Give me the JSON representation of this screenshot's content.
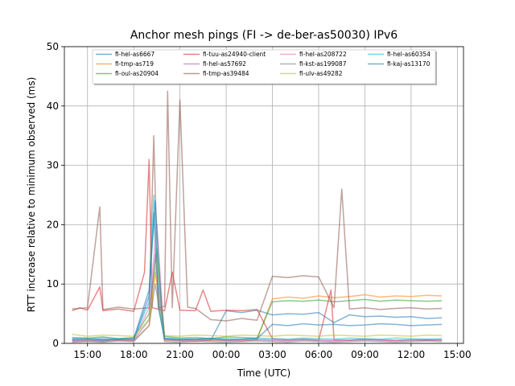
{
  "chart_data": {
    "type": "line",
    "title": "Anchor mesh pings (FI -> de-ber-as50030) IPv6",
    "xlabel": "Time (UTC)",
    "ylabel": "RTT increase relative to minimum observed (ms)",
    "xlim": [
      13.5,
      15.1
    ],
    "ylim": [
      0,
      50
    ],
    "grid": true,
    "legend_position": "top-center",
    "x_ticks": [
      {
        "value": 15,
        "label": "15:00"
      },
      {
        "value": 18,
        "label": "18:00"
      },
      {
        "value": 21,
        "label": "21:00"
      },
      {
        "value": 24,
        "label": "00:00"
      },
      {
        "value": 27,
        "label": "03:00"
      },
      {
        "value": 30,
        "label": "06:00"
      },
      {
        "value": 33,
        "label": "09:00"
      },
      {
        "value": 36,
        "label": "12:00"
      },
      {
        "value": 39,
        "label": "15:00"
      }
    ],
    "y_ticks": [
      0,
      10,
      20,
      30,
      40,
      50
    ],
    "series": [
      {
        "name": "fi-hel-as6667",
        "color": "#1f77b4",
        "x": [
          14,
          15,
          16,
          17,
          18,
          19,
          19.3,
          19.6,
          20,
          21,
          22,
          23,
          24,
          25,
          26,
          27,
          28,
          29,
          30,
          31,
          32,
          33,
          34,
          35,
          36,
          37,
          38
        ],
        "y": [
          0.5,
          0.6,
          0.5,
          0.7,
          0.6,
          8,
          22,
          6,
          0.8,
          0.6,
          0.7,
          0.5,
          5.5,
          5.2,
          5.6,
          4.8,
          5.0,
          4.9,
          5.2,
          3.5,
          4.8,
          4.5,
          4.6,
          4.4,
          4.5,
          4.2,
          4.3
        ]
      },
      {
        "name": "fi-tmp-as719",
        "color": "#ff7f0e",
        "x": [
          14,
          15,
          16,
          17,
          18,
          19,
          19.4,
          20,
          21,
          22,
          23,
          24,
          25,
          26,
          27,
          28,
          29,
          30,
          31,
          32,
          33,
          34,
          35,
          36,
          37,
          38
        ],
        "y": [
          0.3,
          0.4,
          0.3,
          0.5,
          0.4,
          3,
          12,
          0.5,
          0.4,
          0.3,
          0.5,
          0.4,
          0.5,
          0.6,
          7.5,
          7.8,
          7.6,
          8.0,
          7.7,
          7.9,
          8.2,
          7.8,
          8.0,
          7.9,
          8.1,
          8.0
        ]
      },
      {
        "name": "fi-oul-as20904",
        "color": "#2ca02c",
        "x": [
          14,
          15,
          16,
          17,
          18,
          19,
          19.5,
          20,
          21,
          22,
          23,
          24,
          25,
          26,
          27,
          28,
          29,
          30,
          31,
          32,
          33,
          34,
          35,
          36,
          37,
          38
        ],
        "y": [
          1.0,
          0.9,
          1.1,
          0.8,
          1.0,
          5,
          16,
          1.2,
          0.9,
          1.0,
          0.8,
          1.1,
          1.0,
          0.9,
          7.0,
          7.2,
          7.1,
          7.3,
          7.0,
          7.2,
          7.4,
          7.1,
          7.3,
          7.2,
          7.1,
          7.2
        ]
      },
      {
        "name": "fi-tuu-as24940-client",
        "color": "#d62728",
        "x": [
          14,
          14.5,
          15,
          15.8,
          16,
          17,
          18,
          18.7,
          19,
          19.2,
          20,
          20.5,
          21,
          22,
          22.5,
          23,
          24,
          25,
          26,
          27,
          28,
          29,
          30,
          30.8,
          31,
          32,
          33,
          34,
          35,
          36,
          37,
          38
        ],
        "y": [
          5.5,
          6.0,
          5.6,
          9.5,
          5.5,
          5.8,
          5.4,
          12,
          31,
          6,
          5.5,
          12,
          5.6,
          5.5,
          9,
          5.4,
          5.6,
          5.5,
          5.7,
          0.8,
          0.6,
          0.7,
          0.5,
          9,
          0.6,
          0.5,
          0.7,
          0.6,
          0.5,
          0.6,
          0.5,
          0.6
        ]
      },
      {
        "name": "fi-hel-as57692",
        "color": "#9467bd",
        "x": [
          14,
          15,
          16,
          17,
          18,
          19,
          19.4,
          20,
          21,
          22,
          23,
          24,
          25,
          26,
          27,
          28,
          29,
          30,
          31,
          32,
          33,
          34,
          35,
          36,
          37,
          38
        ],
        "y": [
          0.4,
          0.5,
          0.4,
          0.6,
          0.5,
          4,
          15,
          0.6,
          0.5,
          0.4,
          0.6,
          0.5,
          0.4,
          0.6,
          0.5,
          0.4,
          0.6,
          0.5,
          0.4,
          0.5,
          0.6,
          0.5,
          0.4,
          0.5,
          0.6,
          0.5
        ]
      },
      {
        "name": "fi-tmp-as39484",
        "color": "#8c564b",
        "x": [
          14,
          15,
          15.8,
          16,
          17,
          18,
          19,
          19.3,
          19.6,
          20,
          20.2,
          20.5,
          21,
          21.5,
          22,
          23,
          24,
          25,
          26,
          27,
          28,
          29,
          30,
          31,
          31.5,
          32,
          33,
          34,
          35,
          36,
          37,
          38
        ],
        "y": [
          5.8,
          6.0,
          23,
          5.7,
          6.1,
          5.8,
          6.0,
          35,
          6,
          6.2,
          42.5,
          6.0,
          41,
          6.1,
          5.9,
          4.0,
          3.8,
          4.2,
          3.9,
          11.3,
          11.1,
          11.4,
          11.2,
          6.0,
          26,
          5.8,
          6.0,
          5.7,
          5.9,
          6.0,
          5.8,
          5.9
        ]
      },
      {
        "name": "fi-hel-as208722",
        "color": "#e377c2",
        "x": [
          14,
          15,
          16,
          17,
          18,
          19,
          19.5,
          20,
          21,
          22,
          23,
          24,
          25,
          26,
          27,
          28,
          29,
          30,
          31,
          32,
          33,
          34,
          35,
          36,
          37,
          38
        ],
        "y": [
          0.6,
          0.5,
          0.7,
          0.6,
          0.5,
          6,
          20,
          0.7,
          0.6,
          0.5,
          0.7,
          0.6,
          0.5,
          0.7,
          0.6,
          0.5,
          0.7,
          0.6,
          0.5,
          0.6,
          0.7,
          0.6,
          0.5,
          0.6,
          0.7,
          0.6
        ]
      },
      {
        "name": "fi-kst-as199087",
        "color": "#7f7f7f",
        "x": [
          14,
          15,
          16,
          17,
          18,
          19,
          19.4,
          20,
          21,
          22,
          23,
          24,
          25,
          26,
          27,
          28,
          29,
          30,
          31,
          32,
          33,
          34,
          35,
          36,
          37,
          38
        ],
        "y": [
          0.2,
          0.3,
          0.2,
          0.4,
          0.3,
          3,
          10,
          0.3,
          0.2,
          0.4,
          0.3,
          0.2,
          0.3,
          0.4,
          0.3,
          0.2,
          0.4,
          0.3,
          0.2,
          0.3,
          0.4,
          0.3,
          0.2,
          0.3,
          0.4,
          0.3
        ]
      },
      {
        "name": "fi-ulv-as49282",
        "color": "#bcbd22",
        "x": [
          14,
          15,
          16,
          17,
          18,
          19,
          19.5,
          20,
          21,
          22,
          23,
          24,
          25,
          26,
          27,
          28,
          29,
          30,
          31,
          32,
          33,
          34,
          35,
          36,
          37,
          38
        ],
        "y": [
          1.5,
          1.2,
          1.4,
          1.3,
          1.2,
          4,
          14,
          1.3,
          1.2,
          1.4,
          1.3,
          1.2,
          1.4,
          1.3,
          1.2,
          1.4,
          1.3,
          1.2,
          1.4,
          1.3,
          1.2,
          1.4,
          1.3,
          1.2,
          1.4,
          1.3
        ]
      },
      {
        "name": "fi-hel-as60354",
        "color": "#17becf",
        "x": [
          14,
          15,
          16,
          17,
          18,
          19,
          19.3,
          19.7,
          20,
          21,
          22,
          23,
          24,
          25,
          26,
          27,
          28,
          29,
          30,
          31,
          32,
          33,
          34,
          35,
          36,
          37,
          38
        ],
        "y": [
          0.8,
          0.7,
          0.9,
          0.8,
          0.7,
          7,
          25,
          5,
          0.9,
          0.8,
          0.7,
          0.9,
          0.8,
          0.7,
          0.9,
          0.8,
          0.7,
          0.9,
          0.8,
          0.7,
          0.9,
          0.8,
          0.7,
          0.9,
          0.8,
          0.7,
          0.8
        ]
      },
      {
        "name": "fi-kaj-as13170",
        "color": "#1f77b4",
        "x": [
          14,
          15,
          16,
          17,
          18,
          19,
          19.4,
          19.8,
          20,
          21,
          22,
          23,
          24,
          25,
          26,
          27,
          28,
          29,
          30,
          31,
          32,
          33,
          34,
          35,
          36,
          37,
          38
        ],
        "y": [
          0.7,
          0.8,
          0.6,
          0.7,
          0.8,
          9,
          24,
          6,
          0.8,
          0.6,
          0.7,
          0.8,
          0.6,
          0.7,
          0.8,
          3.2,
          3.0,
          3.3,
          3.1,
          3.2,
          3.0,
          3.1,
          3.3,
          3.2,
          3.0,
          3.1,
          3.2
        ]
      }
    ]
  }
}
